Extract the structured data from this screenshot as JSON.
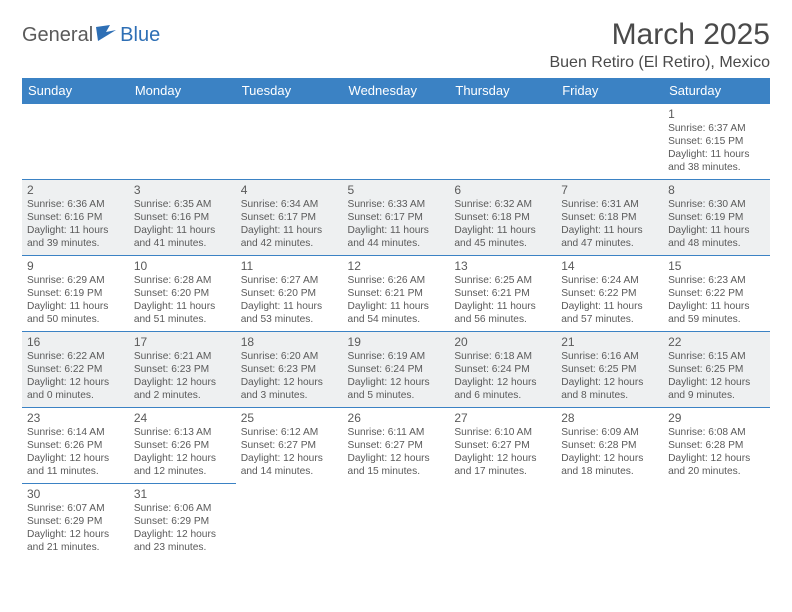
{
  "brand": {
    "part1": "General",
    "part2": "Blue",
    "logo_color": "#2e6fb5"
  },
  "title": "March 2025",
  "location": "Buen Retiro (El Retiro), Mexico",
  "colors": {
    "header_bg": "#3b82c4",
    "header_fg": "#ffffff",
    "border": "#3b82c4",
    "shaded_bg": "#eef0f1",
    "text": "#5a5a5a"
  },
  "weekdays": [
    "Sunday",
    "Monday",
    "Tuesday",
    "Wednesday",
    "Thursday",
    "Friday",
    "Saturday"
  ],
  "weeks": [
    [
      null,
      null,
      null,
      null,
      null,
      null,
      {
        "d": "1",
        "sr": "6:37 AM",
        "ss": "6:15 PM",
        "dl": "11 hours and 38 minutes."
      }
    ],
    [
      {
        "d": "2",
        "sr": "6:36 AM",
        "ss": "6:16 PM",
        "dl": "11 hours and 39 minutes."
      },
      {
        "d": "3",
        "sr": "6:35 AM",
        "ss": "6:16 PM",
        "dl": "11 hours and 41 minutes."
      },
      {
        "d": "4",
        "sr": "6:34 AM",
        "ss": "6:17 PM",
        "dl": "11 hours and 42 minutes."
      },
      {
        "d": "5",
        "sr": "6:33 AM",
        "ss": "6:17 PM",
        "dl": "11 hours and 44 minutes."
      },
      {
        "d": "6",
        "sr": "6:32 AM",
        "ss": "6:18 PM",
        "dl": "11 hours and 45 minutes."
      },
      {
        "d": "7",
        "sr": "6:31 AM",
        "ss": "6:18 PM",
        "dl": "11 hours and 47 minutes."
      },
      {
        "d": "8",
        "sr": "6:30 AM",
        "ss": "6:19 PM",
        "dl": "11 hours and 48 minutes."
      }
    ],
    [
      {
        "d": "9",
        "sr": "6:29 AM",
        "ss": "6:19 PM",
        "dl": "11 hours and 50 minutes."
      },
      {
        "d": "10",
        "sr": "6:28 AM",
        "ss": "6:20 PM",
        "dl": "11 hours and 51 minutes."
      },
      {
        "d": "11",
        "sr": "6:27 AM",
        "ss": "6:20 PM",
        "dl": "11 hours and 53 minutes."
      },
      {
        "d": "12",
        "sr": "6:26 AM",
        "ss": "6:21 PM",
        "dl": "11 hours and 54 minutes."
      },
      {
        "d": "13",
        "sr": "6:25 AM",
        "ss": "6:21 PM",
        "dl": "11 hours and 56 minutes."
      },
      {
        "d": "14",
        "sr": "6:24 AM",
        "ss": "6:22 PM",
        "dl": "11 hours and 57 minutes."
      },
      {
        "d": "15",
        "sr": "6:23 AM",
        "ss": "6:22 PM",
        "dl": "11 hours and 59 minutes."
      }
    ],
    [
      {
        "d": "16",
        "sr": "6:22 AM",
        "ss": "6:22 PM",
        "dl": "12 hours and 0 minutes."
      },
      {
        "d": "17",
        "sr": "6:21 AM",
        "ss": "6:23 PM",
        "dl": "12 hours and 2 minutes."
      },
      {
        "d": "18",
        "sr": "6:20 AM",
        "ss": "6:23 PM",
        "dl": "12 hours and 3 minutes."
      },
      {
        "d": "19",
        "sr": "6:19 AM",
        "ss": "6:24 PM",
        "dl": "12 hours and 5 minutes."
      },
      {
        "d": "20",
        "sr": "6:18 AM",
        "ss": "6:24 PM",
        "dl": "12 hours and 6 minutes."
      },
      {
        "d": "21",
        "sr": "6:16 AM",
        "ss": "6:25 PM",
        "dl": "12 hours and 8 minutes."
      },
      {
        "d": "22",
        "sr": "6:15 AM",
        "ss": "6:25 PM",
        "dl": "12 hours and 9 minutes."
      }
    ],
    [
      {
        "d": "23",
        "sr": "6:14 AM",
        "ss": "6:26 PM",
        "dl": "12 hours and 11 minutes."
      },
      {
        "d": "24",
        "sr": "6:13 AM",
        "ss": "6:26 PM",
        "dl": "12 hours and 12 minutes."
      },
      {
        "d": "25",
        "sr": "6:12 AM",
        "ss": "6:27 PM",
        "dl": "12 hours and 14 minutes."
      },
      {
        "d": "26",
        "sr": "6:11 AM",
        "ss": "6:27 PM",
        "dl": "12 hours and 15 minutes."
      },
      {
        "d": "27",
        "sr": "6:10 AM",
        "ss": "6:27 PM",
        "dl": "12 hours and 17 minutes."
      },
      {
        "d": "28",
        "sr": "6:09 AM",
        "ss": "6:28 PM",
        "dl": "12 hours and 18 minutes."
      },
      {
        "d": "29",
        "sr": "6:08 AM",
        "ss": "6:28 PM",
        "dl": "12 hours and 20 minutes."
      }
    ],
    [
      {
        "d": "30",
        "sr": "6:07 AM",
        "ss": "6:29 PM",
        "dl": "12 hours and 21 minutes."
      },
      {
        "d": "31",
        "sr": "6:06 AM",
        "ss": "6:29 PM",
        "dl": "12 hours and 23 minutes."
      },
      null,
      null,
      null,
      null,
      null
    ]
  ],
  "labels": {
    "sunrise": "Sunrise:",
    "sunset": "Sunset:",
    "daylight": "Daylight:"
  },
  "shaded_rows": [
    1,
    3
  ]
}
